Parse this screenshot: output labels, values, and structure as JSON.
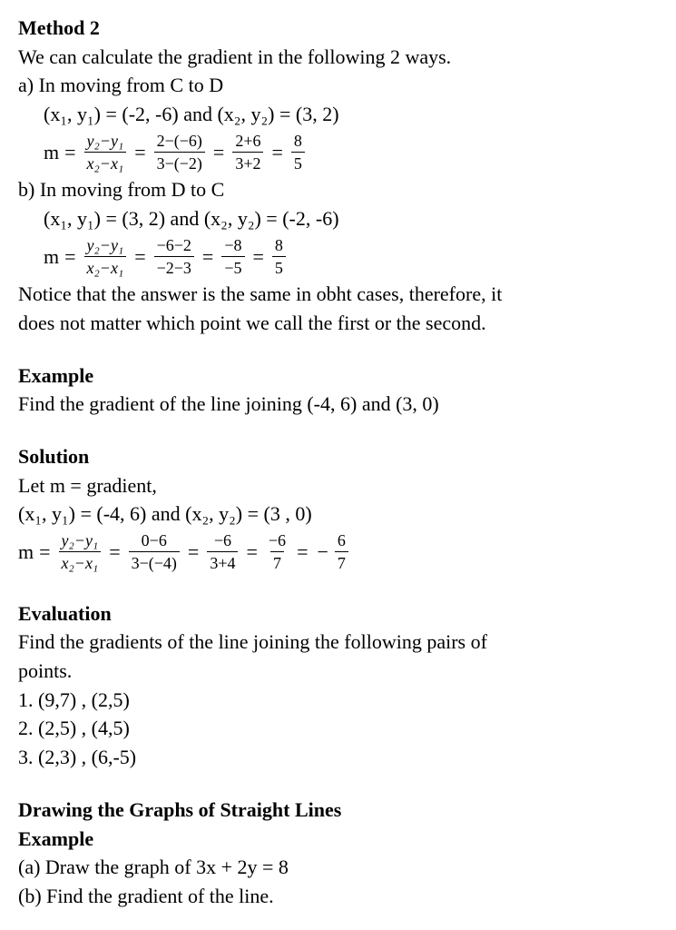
{
  "method2": {
    "heading": "Method 2",
    "intro": "We can calculate the gradient in the following 2 ways.",
    "a": {
      "title": "a) In moving from C to D",
      "pts": "(x₁, y₁) = (-2, -6) and (x₂, y₂) = (3, 2)",
      "m_label": "m",
      "f1n": "y₂−y₁",
      "f1d": "x₂−x₁",
      "f2n": "2−(−6)",
      "f2d": "3−(−2)",
      "f3n": "2+6",
      "f3d": "3+2",
      "f4n": "8",
      "f4d": "5"
    },
    "b": {
      "title": "b) In moving from D to C",
      "pts": "(x₁, y₁) = (3, 2) and (x₂, y₂) = (-2, -6)",
      "m_label": "m",
      "f1n": "y₂−y₁",
      "f1d": "x₂−x₁",
      "f2n": "−6−2",
      "f2d": "−2−3",
      "f3n": "−8",
      "f3d": "−5",
      "f4n": "8",
      "f4d": "5"
    },
    "note1": "Notice that the answer is the same in obht cases, therefore, it",
    "note2": "does not matter which point we call the first or the second."
  },
  "example1": {
    "heading": "Example",
    "q": "Find the gradient of the line joining (-4, 6) and (3, 0)"
  },
  "solution": {
    "heading": "Solution",
    "let": "Let m = gradient,",
    "pts": "(x₁, y₁) = (-4, 6) and (x₂, y₂) = (3 , 0)",
    "m_label": "m",
    "f1n": "y₂−y₁",
    "f1d": "x₂−x₁",
    "f2n": "0−6",
    "f2d": "3−(−4)",
    "f3n": "−6",
    "f3d": "3+4",
    "f4n": "−6",
    "f4d": "7",
    "neg": "−",
    "f5n": "6",
    "f5d": "7"
  },
  "evaluation": {
    "heading": "Evaluation",
    "q1": "Find the gradients of the line joining the following pairs of",
    "q2": "points.",
    "i1": "1.   (9,7) , (2,5)",
    "i2": "2.   (2,5) , (4,5)",
    "i3": "3.  (2,3) , (6,-5)"
  },
  "drawing": {
    "h1": "Drawing the Graphs of Straight Lines",
    "h2": "Example",
    "a": "(a) Draw the graph of 3x + 2y = 8",
    "b": "(b) Find the gradient of the line."
  }
}
